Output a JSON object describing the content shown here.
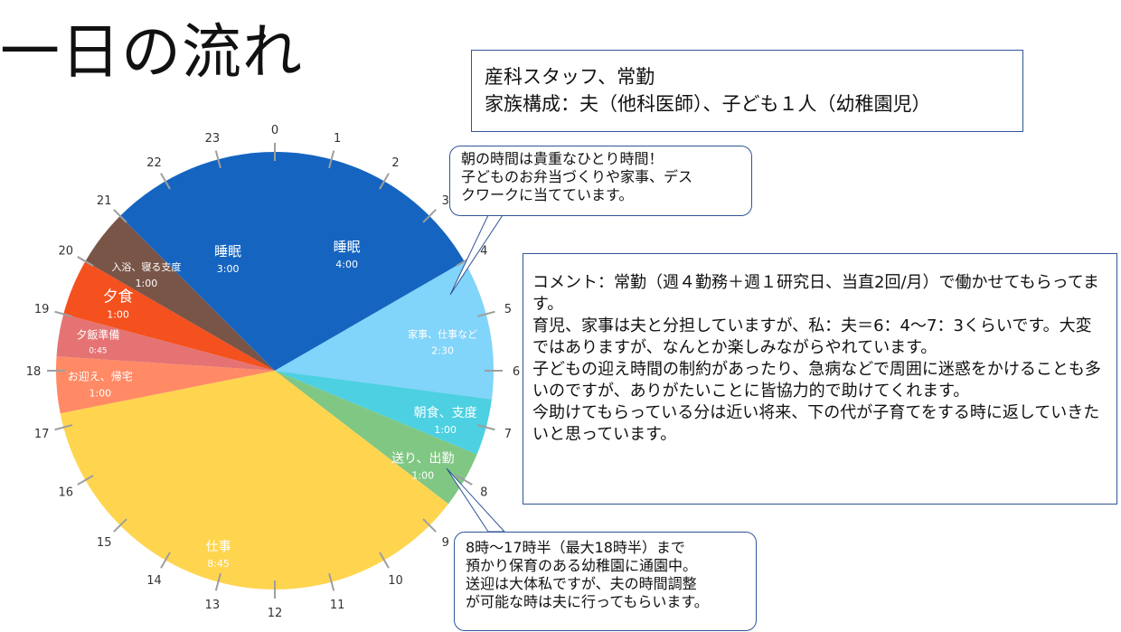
{
  "title": "一日の流れ",
  "profile": {
    "line1": "産科スタッフ、常勤",
    "line2": "家族構成：夫（他科医師）、子ども１人（幼稚園児）"
  },
  "callout_morning": {
    "lines": [
      "朝の時間は貴重なひとり時間！",
      "子どものお弁当づくりや家事、デス",
      "クワークに当てています。"
    ]
  },
  "callout_school": {
    "lines": [
      "8時～17時半（最大18時半）まで",
      "預かり保育のある幼稚園に通園中。",
      "送迎は大体私ですが、夫の時間調整",
      "が可能な時は夫に行ってもらいます。"
    ]
  },
  "comment": {
    "text": "コメント：常勤（週４勤務＋週１研究日、当直2回/月）で働かせてもらってます。\n育児、家事は夫と分担していますが、私：夫＝6：4～7：3くらいです。大変ではありますが、なんとか楽しみながらやれています。\n子どもの迎え時間の制約があったり、急病などで周囲に迷惑をかけることも多いのですが、ありがたいことに皆協力的で助けてくれます。\n今助けてもらっている分は近い将来、下の代が子育てをする時に返していきたいと思っています。"
  },
  "chart_data": {
    "type": "pie",
    "unit": "hours",
    "start_angle_deg": 0,
    "direction": "clockwise",
    "hour_ticks": [
      "0",
      "1",
      "2",
      "3",
      "4",
      "5",
      "6",
      "7",
      "8",
      "9",
      "10",
      "11",
      "12",
      "13",
      "14",
      "15",
      "16",
      "17",
      "18",
      "19",
      "20",
      "21",
      "22",
      "23"
    ],
    "slices": [
      {
        "label": "睡眠",
        "duration": "4:00",
        "start": 0,
        "hours": 4,
        "color": "#1565c0",
        "text_color": "#ffffff"
      },
      {
        "label": "家事、仕事など",
        "duration": "2:30",
        "start": 4,
        "hours": 2.5,
        "color": "#81d4fa",
        "text_color": "#ffffff"
      },
      {
        "label": "朝食、支度",
        "duration": "1:00",
        "start": 6.5,
        "hours": 1,
        "color": "#4dd0e1",
        "text_color": "#ffffff"
      },
      {
        "label": "送り、出勤",
        "duration": "1:00",
        "start": 7.5,
        "hours": 1,
        "color": "#81c784",
        "text_color": "#ffffff"
      },
      {
        "label": "仕事",
        "duration": "8:45",
        "start": 8.5,
        "hours": 8.75,
        "color": "#ffd54f",
        "text_color": "#ffffff"
      },
      {
        "label": "お迎え、帰宅",
        "duration": "1:00",
        "start": 17.25,
        "hours": 1,
        "color": "#ff8a65",
        "text_color": "#ffffff"
      },
      {
        "label": "夕飯準備",
        "duration": "0:45",
        "start": 18.25,
        "hours": 0.75,
        "color": "#e57373",
        "text_color": "#ffffff"
      },
      {
        "label": "夕食",
        "duration": "1:00",
        "start": 19,
        "hours": 1,
        "color": "#f4511e",
        "text_color": "#ffffff"
      },
      {
        "label": "入浴、寝る支度",
        "duration": "1:00",
        "start": 20,
        "hours": 1,
        "color": "#795548",
        "text_color": "#ffffff"
      },
      {
        "label": "睡眠",
        "duration": "3:00",
        "start": 21,
        "hours": 3,
        "color": "#1565c0",
        "text_color": "#ffffff"
      }
    ]
  }
}
